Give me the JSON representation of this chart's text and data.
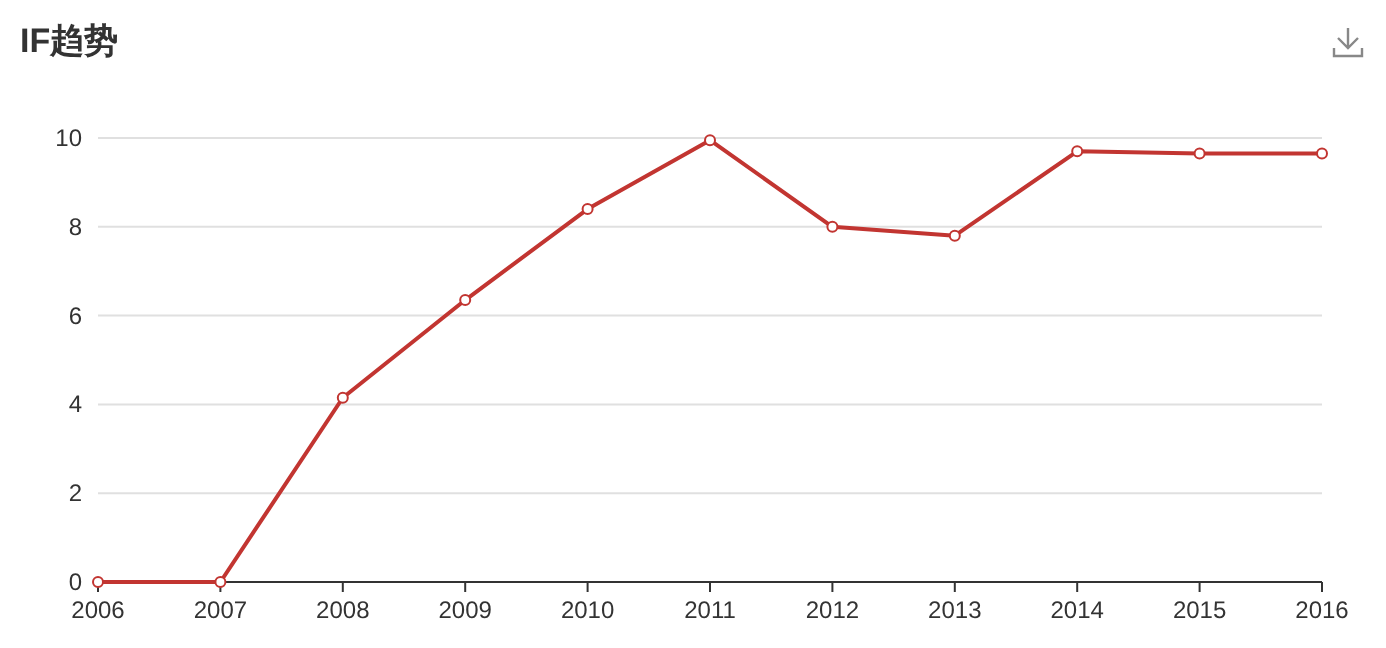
{
  "chart_data": {
    "type": "line",
    "title": "IF趋势",
    "x": [
      2006,
      2007,
      2008,
      2009,
      2010,
      2011,
      2012,
      2013,
      2014,
      2015,
      2016
    ],
    "series": [
      {
        "color": "#c23531",
        "values": [
          0,
          0,
          4.15,
          6.35,
          8.4,
          9.95,
          8.0,
          7.8,
          9.7,
          9.65,
          9.65
        ]
      }
    ],
    "xlim": [
      2006,
      2016
    ],
    "xticks": [
      2006,
      2007,
      2008,
      2009,
      2010,
      2011,
      2012,
      2013,
      2014,
      2015,
      2016
    ],
    "ylim": [
      0,
      10
    ],
    "yticks": [
      0,
      2,
      4,
      6,
      8,
      10
    ],
    "grid": "y",
    "marker": "circle",
    "line_style": "solid"
  }
}
